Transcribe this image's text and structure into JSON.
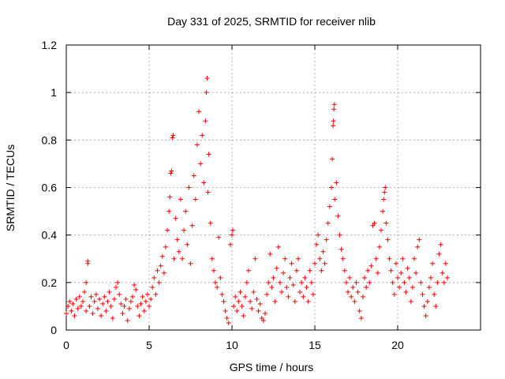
{
  "chart_data": {
    "type": "scatter",
    "title": "Day 331 of 2025, SRMTID for receiver nlib",
    "xlabel": "GPS time / hours",
    "ylabel": "SRMTID / TECUs",
    "xlim": [
      0,
      25
    ],
    "ylim": [
      0,
      1.2
    ],
    "xticks": [
      0,
      5,
      10,
      15,
      20
    ],
    "yticks": [
      0,
      0.2,
      0.4,
      0.6,
      0.8,
      1,
      1.2
    ],
    "xtick_labels": [
      "0",
      "5",
      "10",
      "15",
      "20"
    ],
    "ytick_labels": [
      "0",
      "0.2",
      "0.4",
      "0.6",
      "0.8",
      "1",
      "1.2"
    ],
    "grid": true,
    "marker": "+",
    "color": "#ff0000",
    "series": [
      {
        "name": "SRMTID",
        "points": [
          [
            0.0,
            0.07
          ],
          [
            0.1,
            0.1
          ],
          [
            0.2,
            0.12
          ],
          [
            0.3,
            0.08
          ],
          [
            0.4,
            0.11
          ],
          [
            0.5,
            0.06
          ],
          [
            0.6,
            0.13
          ],
          [
            0.7,
            0.09
          ],
          [
            0.8,
            0.14
          ],
          [
            0.9,
            0.1
          ],
          [
            1.0,
            0.12
          ],
          [
            1.1,
            0.16
          ],
          [
            1.2,
            0.2
          ],
          [
            1.2,
            0.08
          ],
          [
            1.3,
            0.28
          ],
          [
            1.3,
            0.29
          ],
          [
            1.4,
            0.1
          ],
          [
            1.5,
            0.14
          ],
          [
            1.6,
            0.07
          ],
          [
            1.7,
            0.12
          ],
          [
            1.8,
            0.15
          ],
          [
            1.9,
            0.09
          ],
          [
            2.0,
            0.13
          ],
          [
            2.1,
            0.06
          ],
          [
            2.2,
            0.11
          ],
          [
            2.3,
            0.14
          ],
          [
            2.4,
            0.08
          ],
          [
            2.5,
            0.12
          ],
          [
            2.6,
            0.16
          ],
          [
            2.7,
            0.1
          ],
          [
            2.8,
            0.05
          ],
          [
            2.9,
            0.13
          ],
          [
            3.0,
            0.18
          ],
          [
            3.1,
            0.2
          ],
          [
            3.2,
            0.15
          ],
          [
            3.3,
            0.11
          ],
          [
            3.4,
            0.07
          ],
          [
            3.5,
            0.1
          ],
          [
            3.6,
            0.13
          ],
          [
            3.7,
            0.04
          ],
          [
            3.8,
            0.09
          ],
          [
            3.9,
            0.12
          ],
          [
            4.0,
            0.14
          ],
          [
            4.1,
            0.19
          ],
          [
            4.2,
            0.17
          ],
          [
            4.3,
            0.1
          ],
          [
            4.4,
            0.06
          ],
          [
            4.5,
            0.11
          ],
          [
            4.6,
            0.14
          ],
          [
            4.7,
            0.08
          ],
          [
            4.8,
            0.12
          ],
          [
            4.9,
            0.15
          ],
          [
            5.0,
            0.1
          ],
          [
            5.1,
            0.13
          ],
          [
            5.2,
            0.18
          ],
          [
            5.3,
            0.22
          ],
          [
            5.4,
            0.15
          ],
          [
            5.5,
            0.25
          ],
          [
            5.6,
            0.2
          ],
          [
            5.7,
            0.27
          ],
          [
            5.8,
            0.31
          ],
          [
            5.9,
            0.24
          ],
          [
            6.0,
            0.35
          ],
          [
            6.1,
            0.42
          ],
          [
            6.2,
            0.5
          ],
          [
            6.25,
            0.56
          ],
          [
            6.3,
            0.66
          ],
          [
            6.35,
            0.67
          ],
          [
            6.4,
            0.81
          ],
          [
            6.45,
            0.82
          ],
          [
            6.5,
            0.3
          ],
          [
            6.6,
            0.47
          ],
          [
            6.7,
            0.38
          ],
          [
            6.8,
            0.33
          ],
          [
            6.9,
            0.55
          ],
          [
            7.0,
            0.3
          ],
          [
            7.1,
            0.42
          ],
          [
            7.2,
            0.5
          ],
          [
            7.3,
            0.36
          ],
          [
            7.4,
            0.6
          ],
          [
            7.5,
            0.28
          ],
          [
            7.6,
            0.44
          ],
          [
            7.7,
            0.65
          ],
          [
            7.8,
            0.55
          ],
          [
            7.9,
            0.78
          ],
          [
            8.0,
            0.92
          ],
          [
            8.1,
            0.7
          ],
          [
            8.2,
            0.82
          ],
          [
            8.3,
            0.62
          ],
          [
            8.4,
            0.88
          ],
          [
            8.45,
            1.0
          ],
          [
            8.5,
            1.06
          ],
          [
            8.55,
            0.58
          ],
          [
            8.6,
            0.74
          ],
          [
            8.7,
            0.45
          ],
          [
            8.8,
            0.3
          ],
          [
            8.9,
            0.25
          ],
          [
            9.0,
            0.2
          ],
          [
            9.1,
            0.18
          ],
          [
            9.2,
            0.39
          ],
          [
            9.3,
            0.22
          ],
          [
            9.4,
            0.15
          ],
          [
            9.5,
            0.12
          ],
          [
            9.6,
            0.08
          ],
          [
            9.7,
            0.05
          ],
          [
            9.8,
            0.03
          ],
          [
            9.9,
            0.36
          ],
          [
            10.0,
            0.4
          ],
          [
            10.05,
            0.42
          ],
          [
            10.1,
            0.1
          ],
          [
            10.2,
            0.14
          ],
          [
            10.3,
            0.08
          ],
          [
            10.4,
            0.12
          ],
          [
            10.5,
            0.16
          ],
          [
            10.6,
            0.1
          ],
          [
            10.7,
            0.06
          ],
          [
            10.8,
            0.14
          ],
          [
            10.9,
            0.2
          ],
          [
            11.0,
            0.25
          ],
          [
            11.1,
            0.12
          ],
          [
            11.2,
            0.09
          ],
          [
            11.3,
            0.16
          ],
          [
            11.4,
            0.3
          ],
          [
            11.5,
            0.13
          ],
          [
            11.6,
            0.08
          ],
          [
            11.7,
            0.11
          ],
          [
            11.8,
            0.05
          ],
          [
            11.9,
            0.04
          ],
          [
            12.0,
            0.07
          ],
          [
            12.1,
            0.15
          ],
          [
            12.2,
            0.2
          ],
          [
            12.3,
            0.32
          ],
          [
            12.4,
            0.18
          ],
          [
            12.5,
            0.22
          ],
          [
            12.6,
            0.12
          ],
          [
            12.7,
            0.26
          ],
          [
            12.8,
            0.35
          ],
          [
            12.9,
            0.2
          ],
          [
            13.0,
            0.16
          ],
          [
            13.1,
            0.24
          ],
          [
            13.2,
            0.3
          ],
          [
            13.3,
            0.18
          ],
          [
            13.4,
            0.14
          ],
          [
            13.5,
            0.22
          ],
          [
            13.6,
            0.28
          ],
          [
            13.7,
            0.19
          ],
          [
            13.8,
            0.12
          ],
          [
            13.9,
            0.25
          ],
          [
            14.0,
            0.3
          ],
          [
            14.1,
            0.16
          ],
          [
            14.2,
            0.2
          ],
          [
            14.3,
            0.14
          ],
          [
            14.4,
            0.22
          ],
          [
            14.5,
            0.18
          ],
          [
            14.6,
            0.12
          ],
          [
            14.7,
            0.25
          ],
          [
            14.8,
            0.2
          ],
          [
            14.9,
            0.15
          ],
          [
            15.0,
            0.28
          ],
          [
            15.1,
            0.36
          ],
          [
            15.2,
            0.4
          ],
          [
            15.3,
            0.3
          ],
          [
            15.4,
            0.25
          ],
          [
            15.5,
            0.33
          ],
          [
            15.6,
            0.28
          ],
          [
            15.7,
            0.38
          ],
          [
            15.8,
            0.45
          ],
          [
            15.9,
            0.52
          ],
          [
            16.0,
            0.6
          ],
          [
            16.05,
            0.72
          ],
          [
            16.1,
            0.86
          ],
          [
            16.12,
            0.88
          ],
          [
            16.15,
            0.93
          ],
          [
            16.18,
            0.95
          ],
          [
            16.2,
            0.55
          ],
          [
            16.3,
            0.62
          ],
          [
            16.4,
            0.48
          ],
          [
            16.5,
            0.4
          ],
          [
            16.6,
            0.34
          ],
          [
            16.7,
            0.3
          ],
          [
            16.8,
            0.25
          ],
          [
            16.9,
            0.2
          ],
          [
            17.0,
            0.16
          ],
          [
            17.1,
            0.22
          ],
          [
            17.2,
            0.14
          ],
          [
            17.3,
            0.18
          ],
          [
            17.4,
            0.12
          ],
          [
            17.5,
            0.2
          ],
          [
            17.6,
            0.16
          ],
          [
            17.7,
            0.08
          ],
          [
            17.8,
            0.05
          ],
          [
            17.9,
            0.14
          ],
          [
            18.0,
            0.22
          ],
          [
            18.1,
            0.18
          ],
          [
            18.2,
            0.25
          ],
          [
            18.3,
            0.2
          ],
          [
            18.4,
            0.27
          ],
          [
            18.5,
            0.44
          ],
          [
            18.6,
            0.45
          ],
          [
            18.7,
            0.3
          ],
          [
            18.8,
            0.24
          ],
          [
            18.9,
            0.35
          ],
          [
            19.0,
            0.42
          ],
          [
            19.1,
            0.5
          ],
          [
            19.15,
            0.55
          ],
          [
            19.2,
            0.58
          ],
          [
            19.25,
            0.6
          ],
          [
            19.3,
            0.45
          ],
          [
            19.4,
            0.38
          ],
          [
            19.5,
            0.3
          ],
          [
            19.6,
            0.25
          ],
          [
            19.7,
            0.2
          ],
          [
            19.8,
            0.15
          ],
          [
            19.9,
            0.28
          ],
          [
            20.0,
            0.22
          ],
          [
            20.1,
            0.18
          ],
          [
            20.2,
            0.24
          ],
          [
            20.3,
            0.3
          ],
          [
            20.4,
            0.2
          ],
          [
            20.5,
            0.16
          ],
          [
            20.6,
            0.26
          ],
          [
            20.7,
            0.22
          ],
          [
            20.8,
            0.12
          ],
          [
            20.9,
            0.18
          ],
          [
            21.0,
            0.3
          ],
          [
            21.1,
            0.24
          ],
          [
            21.2,
            0.35
          ],
          [
            21.3,
            0.38
          ],
          [
            21.4,
            0.2
          ],
          [
            21.5,
            0.15
          ],
          [
            21.6,
            0.1
          ],
          [
            21.7,
            0.06
          ],
          [
            21.8,
            0.12
          ],
          [
            21.9,
            0.18
          ],
          [
            22.0,
            0.22
          ],
          [
            22.1,
            0.28
          ],
          [
            22.2,
            0.15
          ],
          [
            22.3,
            0.1
          ],
          [
            22.4,
            0.2
          ],
          [
            22.5,
            0.32
          ],
          [
            22.6,
            0.36
          ],
          [
            22.7,
            0.24
          ],
          [
            22.8,
            0.2
          ],
          [
            22.9,
            0.28
          ],
          [
            23.0,
            0.22
          ]
        ]
      }
    ]
  }
}
